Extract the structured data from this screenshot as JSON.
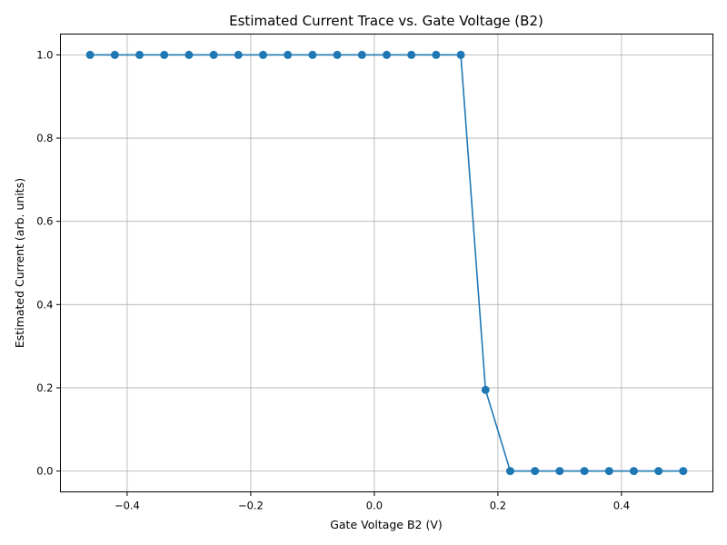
{
  "chart_data": {
    "type": "line",
    "title": "Estimated Current Trace vs. Gate Voltage (B2)",
    "xlabel": "Gate Voltage B2 (V)",
    "ylabel": "Estimated Current (arb. units)",
    "xlim": [
      -0.508,
      0.548
    ],
    "ylim": [
      -0.05,
      1.05
    ],
    "grid": true,
    "x_ticks": [
      -0.4,
      -0.2,
      0.0,
      0.2,
      0.4
    ],
    "x_tick_labels": [
      "−0.4",
      "−0.2",
      "0.0",
      "0.2",
      "0.4"
    ],
    "y_ticks": [
      0.0,
      0.2,
      0.4,
      0.6,
      0.8,
      1.0
    ],
    "y_tick_labels": [
      "0.0",
      "0.2",
      "0.4",
      "0.6",
      "0.8",
      "1.0"
    ],
    "series": [
      {
        "color": "#1f77b4",
        "marker": "circle",
        "x": [
          -0.46,
          -0.42,
          -0.38,
          -0.34,
          -0.3,
          -0.26,
          -0.22,
          -0.18,
          -0.14,
          -0.1,
          -0.06,
          -0.02,
          0.02,
          0.06,
          0.1,
          0.14,
          0.18,
          0.22,
          0.26,
          0.3,
          0.34,
          0.38,
          0.42,
          0.46,
          0.5
        ],
        "y": [
          1.0,
          1.0,
          1.0,
          1.0,
          1.0,
          1.0,
          1.0,
          1.0,
          1.0,
          1.0,
          1.0,
          1.0,
          1.0,
          1.0,
          1.0,
          1.0,
          0.195,
          0.0,
          0.0,
          0.0,
          0.0,
          0.0,
          0.0,
          0.0,
          0.0
        ]
      }
    ]
  }
}
